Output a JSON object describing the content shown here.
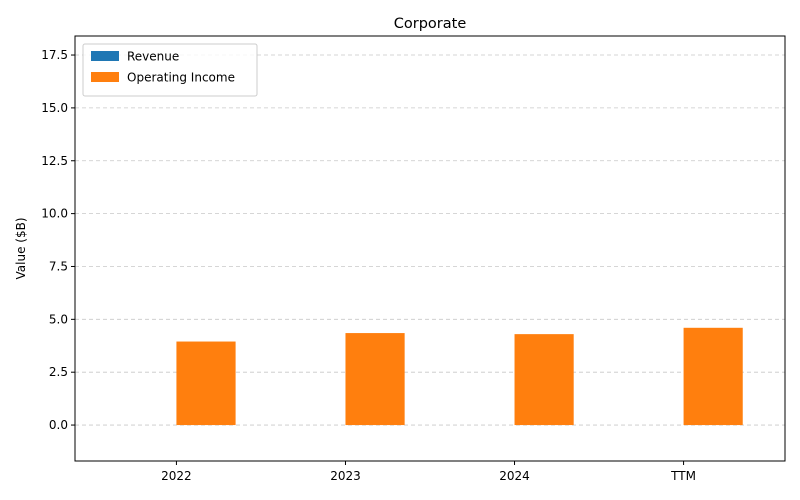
{
  "chart_data": {
    "type": "bar",
    "title": "Corporate",
    "xlabel": "",
    "ylabel": "Value ($B)",
    "categories": [
      "2022",
      "2023",
      "2024",
      "TTM"
    ],
    "series": [
      {
        "name": "Revenue",
        "values": [
          0,
          0,
          0,
          0
        ],
        "color": "#1f77b4"
      },
      {
        "name": "Operating Income",
        "values": [
          3.95,
          4.35,
          4.3,
          4.6
        ],
        "color": "#ff7f0e"
      }
    ],
    "ylim": [
      -1.7,
      18.4
    ],
    "yticks": [
      0.0,
      2.5,
      5.0,
      7.5,
      10.0,
      12.5,
      15.0,
      17.5
    ],
    "ytick_labels": [
      "0.0",
      "2.5",
      "5.0",
      "7.5",
      "10.0",
      "12.5",
      "15.0",
      "17.5"
    ],
    "grid": "y-dashed",
    "legend_position": "top-left"
  }
}
